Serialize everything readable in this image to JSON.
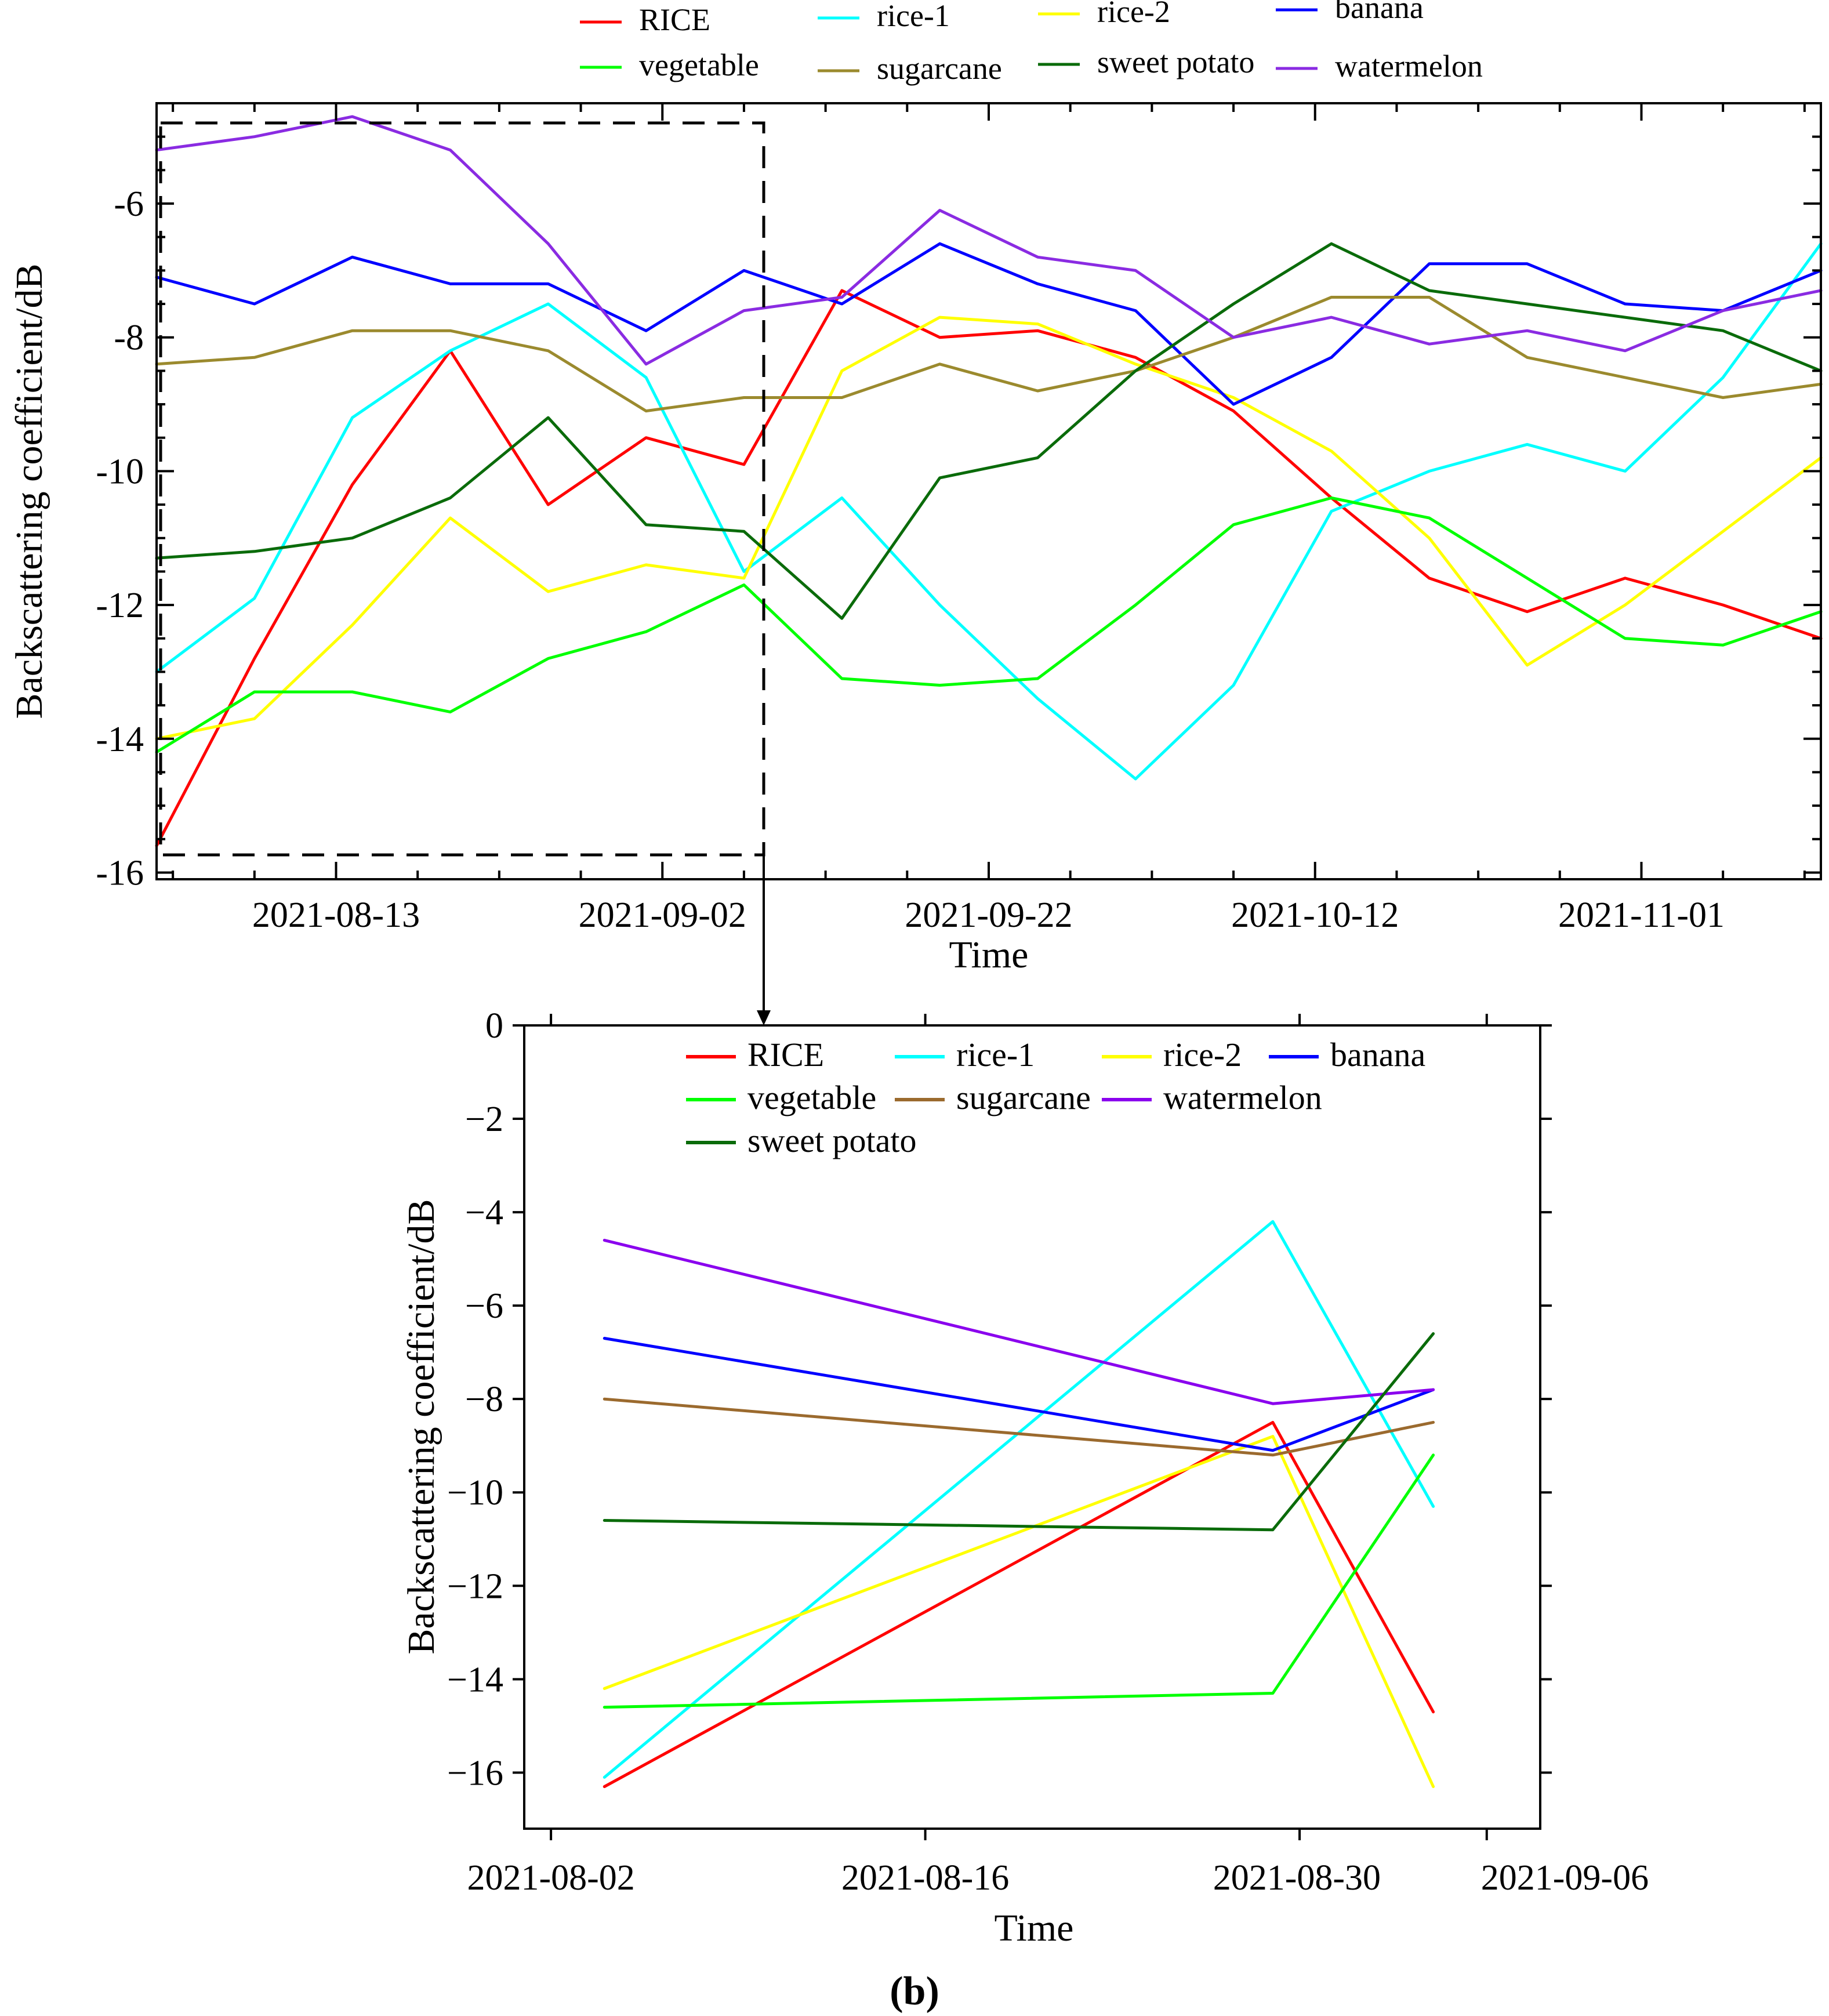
{
  "chart_data": [
    {
      "type": "line",
      "id": "top",
      "title": "",
      "xlabel": "Time",
      "ylabel": "Backscattering coefficient/dB",
      "x": [
        "2021-08-02",
        "2021-08-08",
        "2021-08-14",
        "2021-08-20",
        "2021-08-26",
        "2021-09-01",
        "2021-09-07",
        "2021-09-13",
        "2021-09-19",
        "2021-09-25",
        "2021-10-01",
        "2021-10-07",
        "2021-10-13",
        "2021-10-19",
        "2021-10-25",
        "2021-10-31",
        "2021-11-06",
        "2021-11-12"
      ],
      "xlim": [
        "2021-08-02",
        "2021-11-12"
      ],
      "xticks": [
        "2021-08-13",
        "2021-09-02",
        "2021-09-22",
        "2021-10-12",
        "2021-11-01"
      ],
      "ylim": [
        -16.1,
        -4.5
      ],
      "yticks": [
        -16,
        -14,
        -12,
        -10,
        -8,
        -6
      ],
      "grid": false,
      "legend_position": "top",
      "series": [
        {
          "name": "RICE",
          "color": "#ff0000",
          "values": [
            -15.6,
            -12.8,
            -10.2,
            -8.2,
            -10.5,
            -9.5,
            -9.9,
            -7.3,
            -8.0,
            -7.9,
            -8.3,
            -9.1,
            -10.4,
            -11.6,
            -12.1,
            -11.6,
            -12.0,
            -12.5
          ]
        },
        {
          "name": "rice-1",
          "color": "#00ffff",
          "values": [
            -13.0,
            -11.9,
            -9.2,
            -8.2,
            -7.5,
            -8.6,
            -11.5,
            -10.4,
            -12.0,
            -13.4,
            -14.6,
            -13.2,
            -10.6,
            -10.0,
            -9.6,
            -10.0,
            -8.6,
            -6.6
          ]
        },
        {
          "name": "rice-2",
          "color": "#ffff00",
          "values": [
            -14.0,
            -13.7,
            -12.3,
            -10.7,
            -11.8,
            -11.4,
            -11.6,
            -8.5,
            -7.7,
            -7.8,
            -8.4,
            -8.9,
            -9.7,
            -11.0,
            -12.9,
            -12.0,
            -10.9,
            -9.8
          ]
        },
        {
          "name": "banana",
          "color": "#0000ff",
          "values": [
            -7.1,
            -7.5,
            -6.8,
            -7.2,
            -7.2,
            -7.9,
            -7.0,
            -7.5,
            -6.6,
            -7.2,
            -7.6,
            -9.0,
            -8.3,
            -6.9,
            -6.9,
            -7.5,
            -7.6,
            -7.0
          ]
        },
        {
          "name": "vegetable",
          "color": "#00ff00",
          "values": [
            -14.2,
            -13.3,
            -13.3,
            -13.6,
            -12.8,
            -12.4,
            -11.7,
            -13.1,
            -13.2,
            -13.1,
            -12.0,
            -10.8,
            -10.4,
            -10.7,
            -11.6,
            -12.5,
            -12.6,
            -12.1
          ]
        },
        {
          "name": "sugarcane",
          "color": "#9b8a2e",
          "values": [
            -8.4,
            -8.3,
            -7.9,
            -7.9,
            -8.2,
            -9.1,
            -8.9,
            -8.9,
            -8.4,
            -8.8,
            -8.5,
            -8.0,
            -7.4,
            -7.4,
            -8.3,
            -8.6,
            -8.9,
            -8.7
          ]
        },
        {
          "name": "sweet potato",
          "color": "#0a6b0a",
          "values": [
            -11.3,
            -11.2,
            -11.0,
            -10.4,
            -9.2,
            -10.8,
            -10.9,
            -12.2,
            -10.1,
            -9.8,
            -8.5,
            -7.5,
            -6.6,
            -7.3,
            -7.5,
            -7.7,
            -7.9,
            -8.5
          ]
        },
        {
          "name": "watermelon",
          "color": "#8a2be2",
          "values": [
            -5.2,
            -5.0,
            -4.7,
            -5.2,
            -6.6,
            -8.4,
            -7.6,
            -7.4,
            -6.1,
            -6.8,
            -7.0,
            -8.0,
            -7.7,
            -8.1,
            -7.9,
            -8.2,
            -7.6,
            -7.3
          ]
        }
      ],
      "annotation": "dashed rectangle marks the zoomed region shown below"
    },
    {
      "type": "line",
      "id": "bottom",
      "title": "",
      "xlabel": "Time",
      "ylabel": "Backscattering coefficient/dB",
      "x": [
        "2021-08-04",
        "2021-08-29",
        "2021-09-04"
      ],
      "xlim": [
        "2021-08-01",
        "2021-09-08"
      ],
      "xticks": [
        "2021-08-02",
        "2021-08-16",
        "2021-08-30",
        "2021-09-06"
      ],
      "ylim": [
        -17.2,
        0
      ],
      "yticks": [
        -16,
        -14,
        -12,
        -10,
        -8,
        -6,
        -4,
        -2,
        0
      ],
      "grid": false,
      "legend_position": "top",
      "series": [
        {
          "name": "RICE",
          "color": "#ff0000",
          "values": [
            -16.3,
            -8.5,
            -14.7
          ]
        },
        {
          "name": "rice-1",
          "color": "#00ffff",
          "values": [
            -16.1,
            -4.2,
            -10.3
          ]
        },
        {
          "name": "rice-2",
          "color": "#ffff00",
          "values": [
            -14.2,
            -8.8,
            -16.3
          ]
        },
        {
          "name": "banana",
          "color": "#0000ff",
          "values": [
            -6.7,
            -9.1,
            -7.8
          ]
        },
        {
          "name": "vegetable",
          "color": "#00ff00",
          "values": [
            -14.6,
            -14.3,
            -9.2
          ]
        },
        {
          "name": "sugarcane",
          "color": "#9b6a2e",
          "values": [
            -8.0,
            -9.2,
            -8.5
          ]
        },
        {
          "name": "watermelon",
          "color": "#8a00ee",
          "values": [
            -4.6,
            -8.1,
            -7.8
          ]
        },
        {
          "name": "sweet potato",
          "color": "#0a6b0a",
          "values": [
            -10.6,
            -10.8,
            -6.6
          ]
        }
      ]
    }
  ],
  "caption": "(b)"
}
